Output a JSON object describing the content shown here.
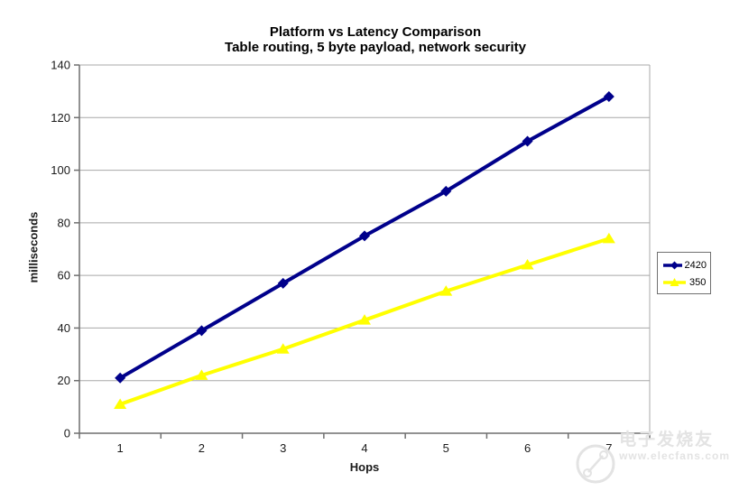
{
  "title": {
    "line1": "Platform vs Latency Comparison",
    "line2": "Table routing, 5 byte payload, network security"
  },
  "axes": {
    "y_label": "milliseconds",
    "x_label": "Hops"
  },
  "watermark": {
    "line1": "电子发烧友",
    "line2": "www.elecfans.com"
  },
  "colors": {
    "gridline": "#a8a8a8",
    "axis": "#6f6f6f",
    "plot_border": "#a8a8a8",
    "tick_text": "#1a1a1a",
    "series_2420": "#00008b",
    "series_350": "#ffff00",
    "watermark": "#e3e3e3"
  },
  "chart_data": {
    "type": "line",
    "title": "Platform vs Latency Comparison",
    "subtitle": "Table routing, 5 byte payload, network security",
    "xlabel": "Hops",
    "ylabel": "milliseconds",
    "categories": [
      1,
      2,
      3,
      4,
      5,
      6,
      7
    ],
    "series": [
      {
        "name": "2420",
        "color": "#00008b",
        "marker": "diamond",
        "values": [
          21,
          39,
          57,
          75,
          92,
          111,
          128
        ]
      },
      {
        "name": "350",
        "color": "#ffff00",
        "marker": "triangle",
        "values": [
          11,
          22,
          32,
          43,
          54,
          64,
          74
        ]
      }
    ],
    "ylim": [
      0,
      140
    ],
    "yticks": [
      0,
      20,
      40,
      60,
      80,
      100,
      120,
      140
    ],
    "grid": true,
    "legend_position": "right"
  }
}
